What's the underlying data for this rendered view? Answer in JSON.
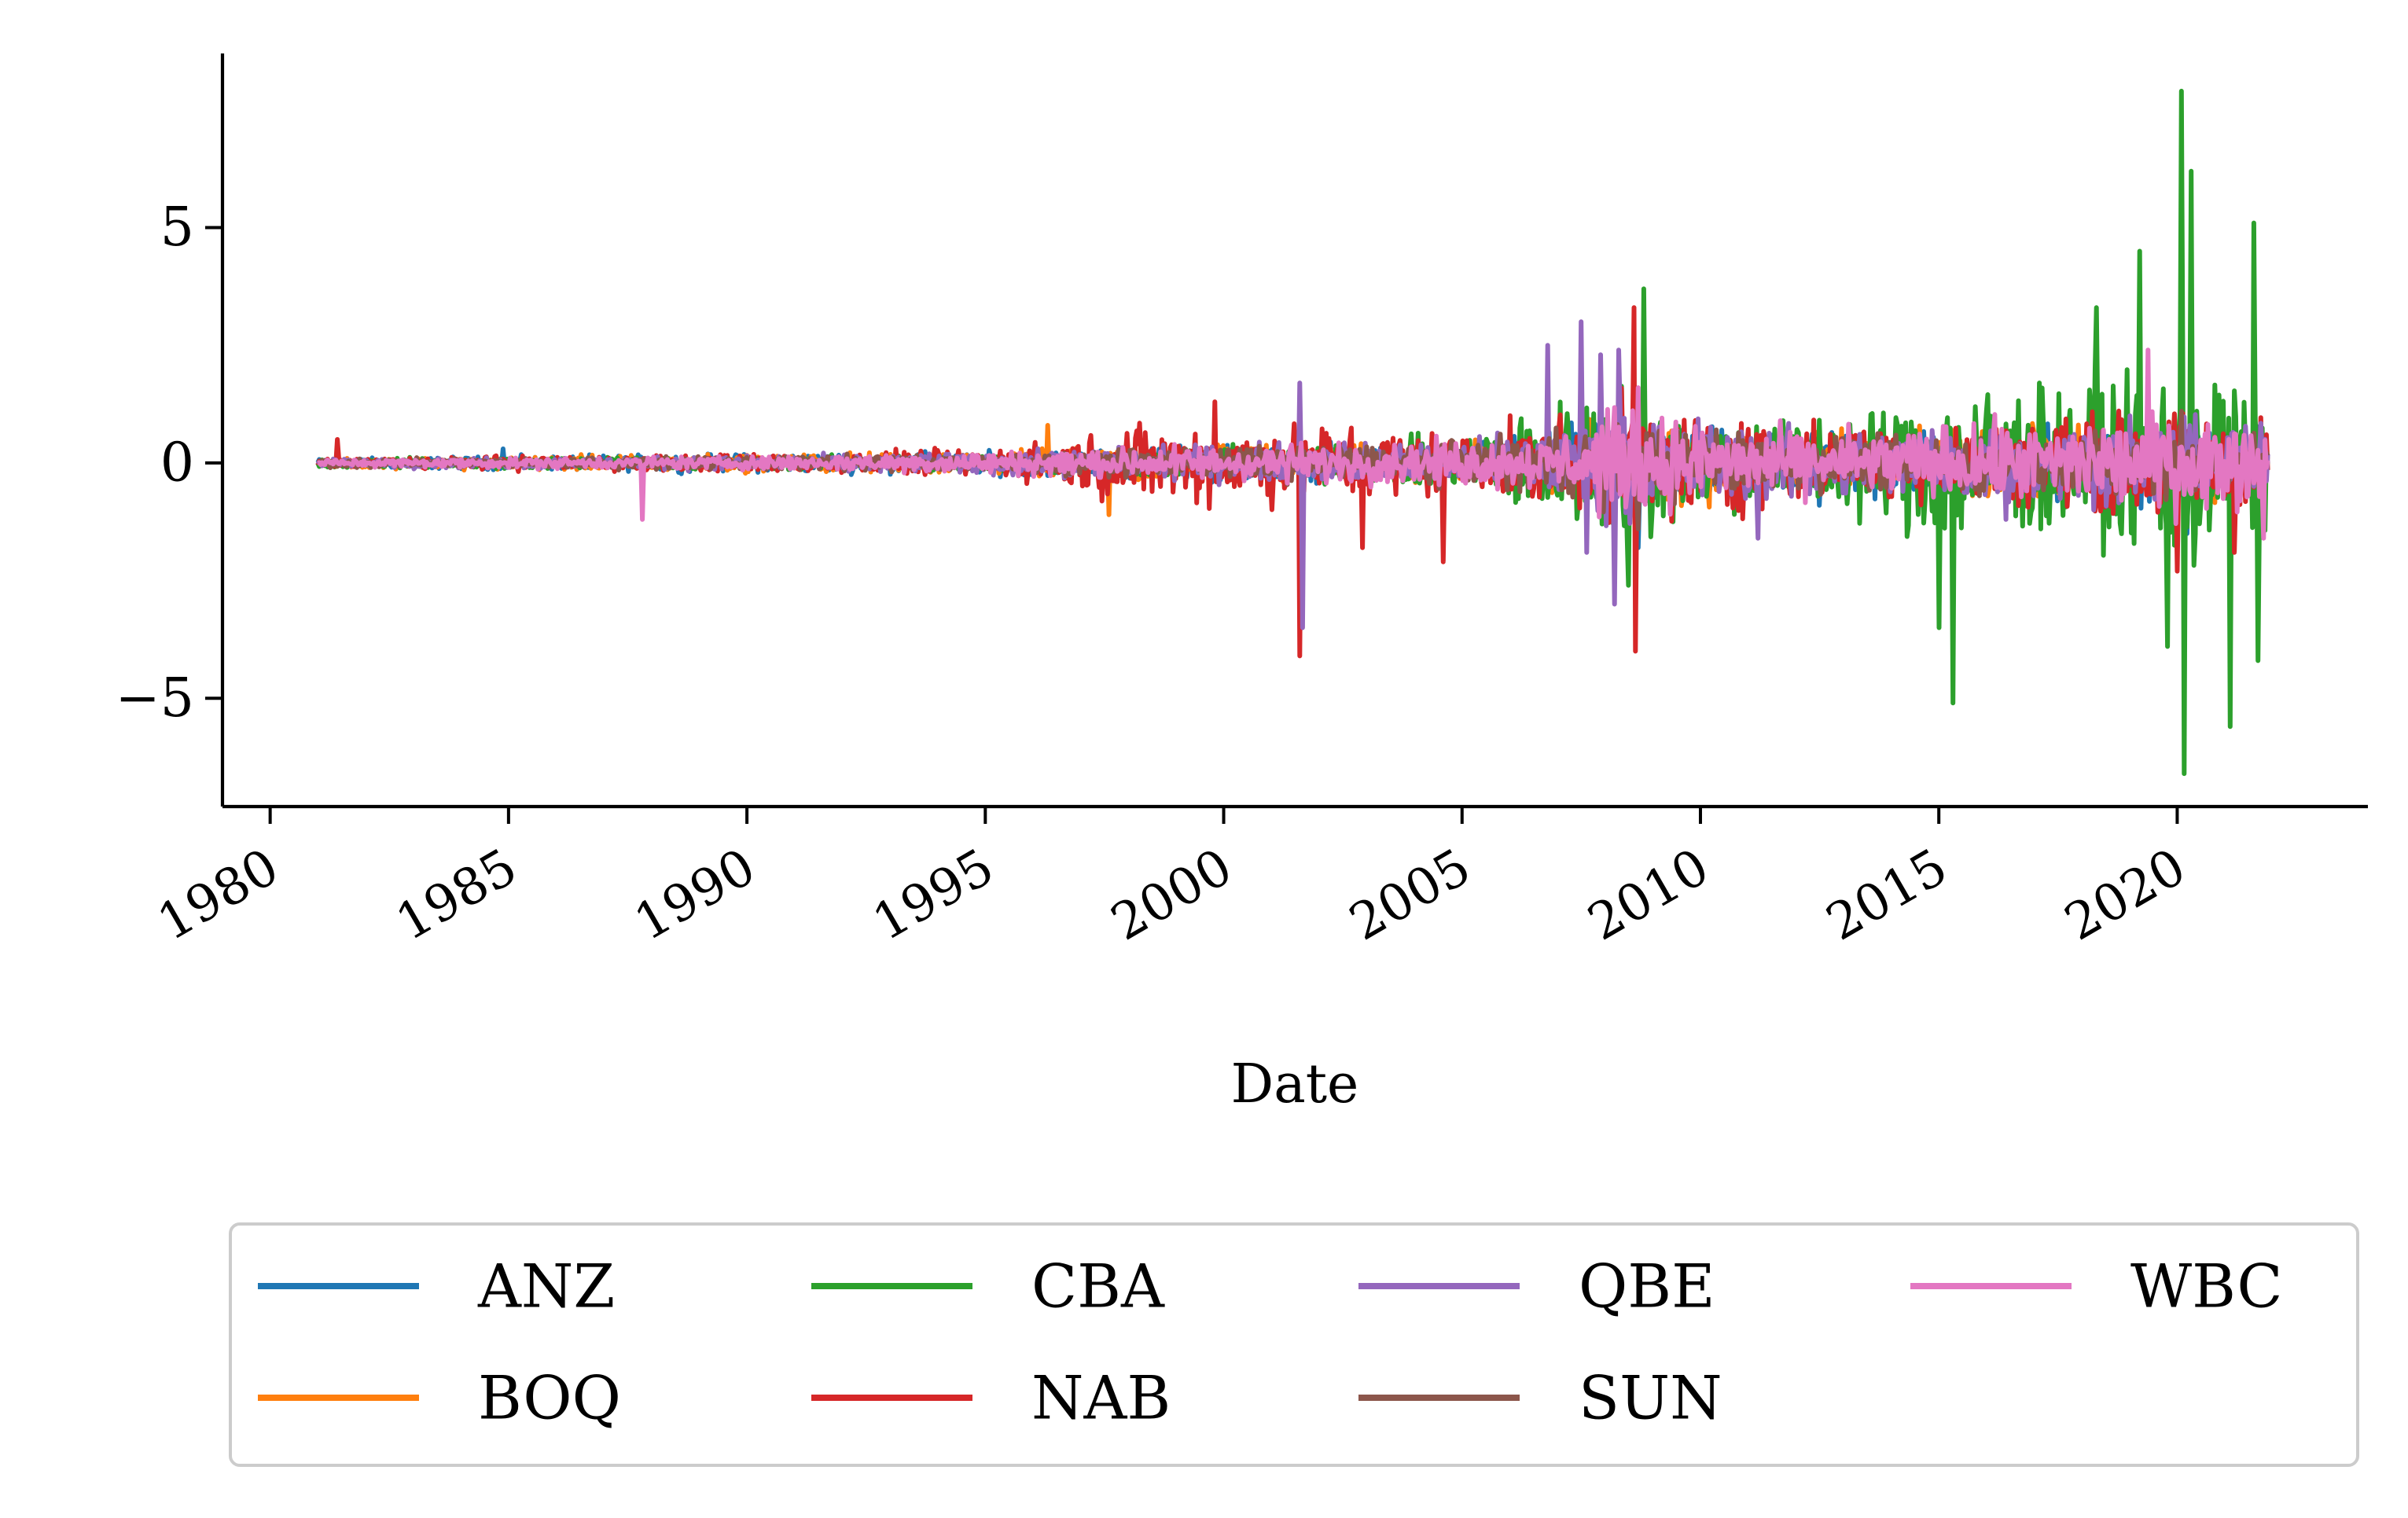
{
  "chart_data": {
    "type": "line",
    "title": "",
    "xlabel": "Date",
    "ylabel": "",
    "xlim": [
      1979.0,
      2024.0
    ],
    "ylim": [
      -7.3,
      8.7
    ],
    "grid": false,
    "legend_position": "bottom",
    "legend_columns": 4,
    "x_ticks": [
      {
        "value": 1980,
        "label": "1980"
      },
      {
        "value": 1985,
        "label": "1985"
      },
      {
        "value": 1990,
        "label": "1990"
      },
      {
        "value": 1995,
        "label": "1995"
      },
      {
        "value": 2000,
        "label": "2000"
      },
      {
        "value": 2005,
        "label": "2005"
      },
      {
        "value": 2010,
        "label": "2010"
      },
      {
        "value": 2015,
        "label": "2015"
      },
      {
        "value": 2020,
        "label": "2020"
      }
    ],
    "y_ticks": [
      {
        "value": 5,
        "label": "5"
      },
      {
        "value": 0,
        "label": "0"
      },
      {
        "value": -5,
        "label": "−5"
      }
    ],
    "x_start": 1981.0,
    "x_end": 2021.9,
    "series": [
      {
        "name": "ANZ",
        "color": "#1f77b4",
        "envelope": [
          [
            1981,
            0.1
          ],
          [
            1985,
            0.15
          ],
          [
            1990,
            0.2
          ],
          [
            1995,
            0.25
          ],
          [
            1998,
            0.35
          ],
          [
            2000,
            0.4
          ],
          [
            2005,
            0.4
          ],
          [
            2008,
            0.9
          ],
          [
            2009,
            1.0
          ],
          [
            2012,
            0.7
          ],
          [
            2015,
            0.7
          ],
          [
            2020,
            0.9
          ],
          [
            2021.9,
            0.7
          ]
        ],
        "spikes": [
          [
            1984.9,
            0.3
          ],
          [
            2008.7,
            -1.8
          ],
          [
            2012.5,
            -0.9
          ],
          [
            2020.2,
            -1.5
          ]
        ]
      },
      {
        "name": "BOQ",
        "color": "#ff7f0e",
        "envelope": [
          [
            1981,
            0.1
          ],
          [
            1985,
            0.15
          ],
          [
            1990,
            0.2
          ],
          [
            1995,
            0.25
          ],
          [
            1998,
            0.35
          ],
          [
            2000,
            0.4
          ],
          [
            2005,
            0.4
          ],
          [
            2008,
            0.9
          ],
          [
            2009,
            1.0
          ],
          [
            2012,
            0.7
          ],
          [
            2015,
            0.7
          ],
          [
            2020,
            0.9
          ],
          [
            2021.9,
            0.7
          ]
        ],
        "spikes": [
          [
            1996.3,
            0.8
          ],
          [
            1997.6,
            -1.1
          ],
          [
            1985.5,
            -0.1
          ]
        ]
      },
      {
        "name": "CBA",
        "color": "#2ca02c",
        "envelope": [
          [
            1981,
            0.1
          ],
          [
            1990,
            0.15
          ],
          [
            1995,
            0.2
          ],
          [
            2000,
            0.35
          ],
          [
            2005,
            0.6
          ],
          [
            2008,
            1.8
          ],
          [
            2009,
            1.6
          ],
          [
            2010,
            1.2
          ],
          [
            2012,
            1.0
          ],
          [
            2014,
            1.4
          ],
          [
            2015,
            1.9
          ],
          [
            2017,
            1.8
          ],
          [
            2019,
            1.7
          ],
          [
            2020,
            2.8
          ],
          [
            2021,
            2.0
          ],
          [
            2021.9,
            1.6
          ]
        ],
        "spikes": [
          [
            2008.8,
            3.7
          ],
          [
            2008.5,
            -2.6
          ],
          [
            2015.3,
            -5.1
          ],
          [
            2015.0,
            -3.5
          ],
          [
            2019.2,
            4.5
          ],
          [
            2020.1,
            7.9
          ],
          [
            2020.15,
            -6.6
          ],
          [
            2020.3,
            6.2
          ],
          [
            2021.1,
            -5.6
          ],
          [
            2021.6,
            5.1
          ],
          [
            2021.7,
            -4.2
          ],
          [
            2018.3,
            3.3
          ],
          [
            2019.8,
            -3.9
          ]
        ]
      },
      {
        "name": "NAB",
        "color": "#d62728",
        "envelope": [
          [
            1981,
            0.1
          ],
          [
            1985,
            0.15
          ],
          [
            1990,
            0.2
          ],
          [
            1995,
            0.3
          ],
          [
            1997,
            0.6
          ],
          [
            1998,
            0.9
          ],
          [
            2000,
            0.9
          ],
          [
            2002,
            0.9
          ],
          [
            2004,
            0.8
          ],
          [
            2005,
            0.6
          ],
          [
            2008,
            1.2
          ],
          [
            2009,
            1.4
          ],
          [
            2010,
            1.2
          ],
          [
            2012,
            0.9
          ],
          [
            2015,
            0.8
          ],
          [
            2020,
            1.2
          ],
          [
            2021.9,
            1.0
          ]
        ],
        "spikes": [
          [
            1981.4,
            0.5
          ],
          [
            2001.6,
            -4.1
          ],
          [
            2002.9,
            -1.8
          ],
          [
            2004.6,
            -2.1
          ],
          [
            2008.6,
            3.3
          ],
          [
            2008.65,
            -4.0
          ],
          [
            2020.0,
            -2.3
          ],
          [
            2021.2,
            -1.9
          ],
          [
            1999.8,
            1.3
          ]
        ]
      },
      {
        "name": "QBE",
        "color": "#9467bd",
        "envelope": [
          [
            1981,
            0.1
          ],
          [
            1990,
            0.15
          ],
          [
            1995,
            0.25
          ],
          [
            2000,
            0.4
          ],
          [
            2005,
            0.5
          ],
          [
            2007,
            0.8
          ],
          [
            2008,
            1.2
          ],
          [
            2009,
            1.1
          ],
          [
            2012,
            0.8
          ],
          [
            2015,
            0.8
          ],
          [
            2020,
            1.0
          ],
          [
            2021.9,
            0.8
          ]
        ],
        "spikes": [
          [
            2001.6,
            1.7
          ],
          [
            2001.65,
            -3.5
          ],
          [
            2006.8,
            2.5
          ],
          [
            2007.5,
            3.0
          ],
          [
            2007.6,
            -1.9
          ],
          [
            2007.9,
            2.3
          ],
          [
            2008.2,
            -3.0
          ],
          [
            2008.3,
            2.4
          ],
          [
            2011.2,
            -1.6
          ],
          [
            2016.4,
            -1.2
          ]
        ]
      },
      {
        "name": "SUN",
        "color": "#8c564b",
        "envelope": [
          [
            1981,
            0.1
          ],
          [
            1990,
            0.15
          ],
          [
            1995,
            0.2
          ],
          [
            2000,
            0.35
          ],
          [
            2005,
            0.45
          ],
          [
            2008,
            0.9
          ],
          [
            2009,
            0.9
          ],
          [
            2012,
            0.6
          ],
          [
            2015,
            0.6
          ],
          [
            2020,
            0.8
          ],
          [
            2021.9,
            0.6
          ]
        ],
        "spikes": [
          [
            2008.7,
            -1.4
          ],
          [
            2020.1,
            1.1
          ]
        ]
      },
      {
        "name": "WBC",
        "color": "#e377c2",
        "envelope": [
          [
            1981,
            0.08
          ],
          [
            1985,
            0.12
          ],
          [
            1990,
            0.15
          ],
          [
            1995,
            0.25
          ],
          [
            2000,
            0.4
          ],
          [
            2005,
            0.5
          ],
          [
            2007,
            0.6
          ],
          [
            2008,
            1.2
          ],
          [
            2009,
            1.1
          ],
          [
            2010,
            0.9
          ],
          [
            2012,
            0.7
          ],
          [
            2015,
            0.8
          ],
          [
            2020,
            1.1
          ],
          [
            2021.9,
            0.9
          ]
        ],
        "spikes": [
          [
            1987.8,
            -1.2
          ],
          [
            2019.4,
            2.4
          ],
          [
            2008.7,
            1.6
          ],
          [
            2021.8,
            -1.6
          ]
        ]
      }
    ]
  }
}
